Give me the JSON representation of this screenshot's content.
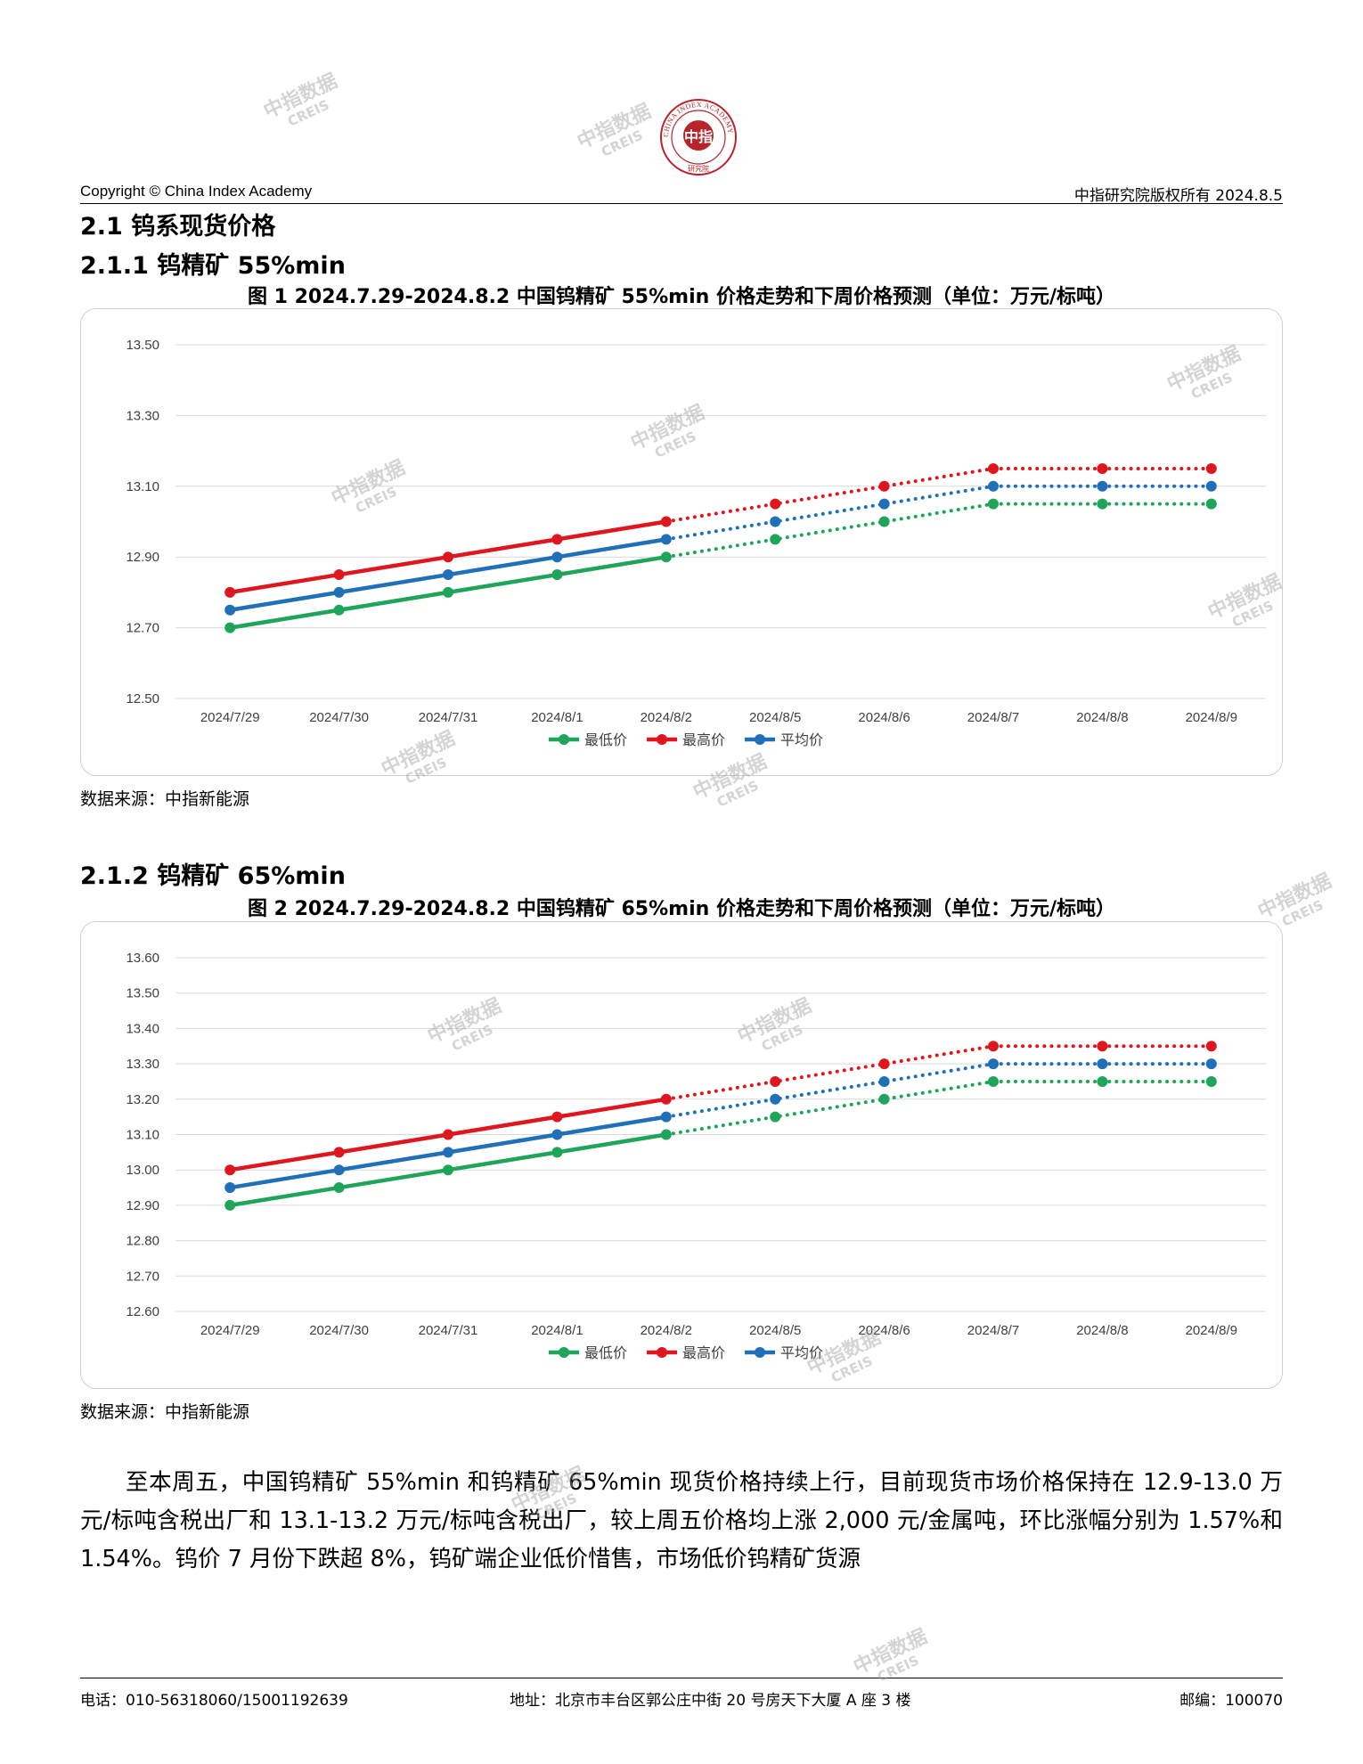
{
  "header": {
    "left": "Copyright © China Index Academy",
    "right": "中指研究院版权所有 2024.8.5",
    "logo_text": "中指",
    "logo_ring_text": "CHINA INDEX ACADEMY",
    "logo_bottom_text": "研究院"
  },
  "watermark": {
    "line1": "中指数据",
    "line2": "CREIS"
  },
  "section": {
    "title": "2.1 钨系现货价格",
    "sub1": "2.1.1 钨精矿 55%min",
    "sub2": "2.1.2 钨精矿 65%min"
  },
  "chart_data": [
    {
      "type": "line",
      "title": "图 1 2024.7.29-2024.8.2 中国钨精矿 55%min 价格走势和下周价格预测（单位：万元/标吨）",
      "categories": [
        "2024/7/29",
        "2024/7/30",
        "2024/7/31",
        "2024/8/1",
        "2024/8/2",
        "2024/8/5",
        "2024/8/6",
        "2024/8/7",
        "2024/8/8",
        "2024/8/9"
      ],
      "actual_through": "2024/8/2",
      "forecast_style": "dotted",
      "ylim": [
        12.5,
        13.5
      ],
      "yticks": [
        "12.50",
        "12.70",
        "12.90",
        "13.10",
        "13.30",
        "13.50"
      ],
      "grid": true,
      "legend": "bottom",
      "series": [
        {
          "name": "最低价",
          "color": "#1fa55a",
          "values": [
            12.7,
            12.75,
            12.8,
            12.85,
            12.9,
            12.95,
            13.0,
            13.05,
            13.05,
            13.05
          ]
        },
        {
          "name": "最高价",
          "color": "#e0161e",
          "values": [
            12.8,
            12.85,
            12.9,
            12.95,
            13.0,
            13.05,
            13.1,
            13.15,
            13.15,
            13.15
          ]
        },
        {
          "name": "平均价",
          "color": "#1f70b8",
          "values": [
            12.75,
            12.8,
            12.85,
            12.9,
            12.95,
            13.0,
            13.05,
            13.1,
            13.1,
            13.1
          ]
        }
      ]
    },
    {
      "type": "line",
      "title": "图 2 2024.7.29-2024.8.2 中国钨精矿 65%min 价格走势和下周价格预测（单位：万元/标吨）",
      "categories": [
        "2024/7/29",
        "2024/7/30",
        "2024/7/31",
        "2024/8/1",
        "2024/8/2",
        "2024/8/5",
        "2024/8/6",
        "2024/8/7",
        "2024/8/8",
        "2024/8/9"
      ],
      "actual_through": "2024/8/2",
      "forecast_style": "dotted",
      "ylim": [
        12.6,
        13.6
      ],
      "yticks": [
        "12.60",
        "12.70",
        "12.80",
        "12.90",
        "13.00",
        "13.10",
        "13.20",
        "13.30",
        "13.40",
        "13.50",
        "13.60"
      ],
      "grid": true,
      "legend": "bottom",
      "series": [
        {
          "name": "最低价",
          "color": "#1fa55a",
          "values": [
            12.9,
            12.95,
            13.0,
            13.05,
            13.1,
            13.15,
            13.2,
            13.25,
            13.25,
            13.25
          ]
        },
        {
          "name": "最高价",
          "color": "#e0161e",
          "values": [
            13.0,
            13.05,
            13.1,
            13.15,
            13.2,
            13.25,
            13.3,
            13.35,
            13.35,
            13.35
          ]
        },
        {
          "name": "平均价",
          "color": "#1f70b8",
          "values": [
            12.95,
            13.0,
            13.05,
            13.1,
            13.15,
            13.2,
            13.25,
            13.3,
            13.3,
            13.3
          ]
        }
      ]
    }
  ],
  "sources": [
    "数据来源：中指新能源",
    "数据来源：中指新能源"
  ],
  "paragraph": "至本周五，中国钨精矿 55%min 和钨精矿 65%min 现货价格持续上行，目前现货市场价格保持在 12.9-13.0 万元/标吨含税出厂和 13.1-13.2 万元/标吨含税出厂，较上周五价格均上涨 2,000 元/金属吨，环比涨幅分别为 1.57%和 1.54%。钨价 7 月份下跌超 8%，钨矿端企业低价惜售，市场低价钨精矿货源",
  "footer": {
    "phone": "电话：010-56318060/15001192639",
    "address": "地址：北京市丰台区郭公庄中街 20 号房天下大厦 A 座 3 楼",
    "postcode": "邮编：100070"
  }
}
